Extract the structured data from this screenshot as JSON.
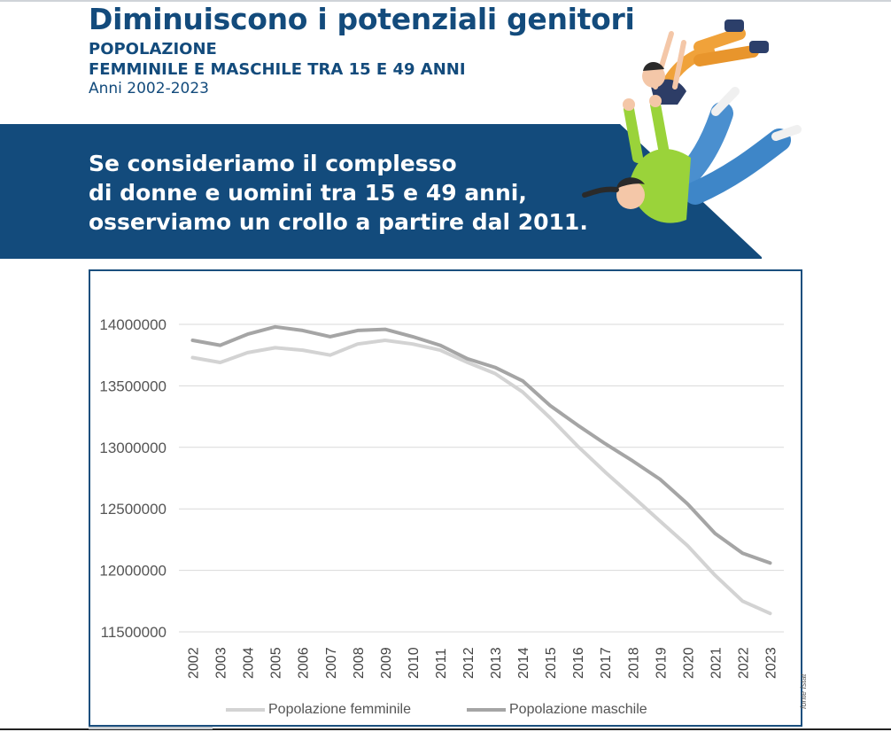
{
  "header": {
    "title": "Diminuiscono i potenziali genitori",
    "subtitle_line1": "POPOLAZIONE",
    "subtitle_line2": "FEMMINILE E MASCHILE TRA 15 E 49 ANNI",
    "years": "Anni 2002-2023"
  },
  "banner": {
    "line1": "Se consideriamo il complesso",
    "line2": "di donne e uomini tra 15 e 49 anni,",
    "line3": "osserviamo un crollo a partire dal 2011."
  },
  "source_note": "fonte Istat",
  "colors": {
    "title": "#134b7c",
    "banner": "#134b7c",
    "series_femminile": "#d3d3d3",
    "series_maschile": "#a5a5a5",
    "chart_border": "#1a4f7e"
  },
  "chart_data": {
    "type": "line",
    "x": [
      "2002",
      "2003",
      "2004",
      "2005",
      "2006",
      "2007",
      "2008",
      "2009",
      "2010",
      "2011",
      "2012",
      "2013",
      "2014",
      "2015",
      "2016",
      "2017",
      "2018",
      "2019",
      "2020",
      "2021",
      "2022",
      "2023"
    ],
    "series": [
      {
        "name": "Popolazione femminile",
        "values": [
          13730000,
          13690000,
          13770000,
          13810000,
          13790000,
          13750000,
          13840000,
          13870000,
          13840000,
          13790000,
          13690000,
          13600000,
          13450000,
          13240000,
          13010000,
          12800000,
          12600000,
          12400000,
          12200000,
          11960000,
          11750000,
          11650000
        ]
      },
      {
        "name": "Popolazione maschile",
        "values": [
          13870000,
          13830000,
          13920000,
          13980000,
          13950000,
          13900000,
          13950000,
          13960000,
          13900000,
          13830000,
          13720000,
          13650000,
          13540000,
          13340000,
          13180000,
          13030000,
          12890000,
          12740000,
          12540000,
          12300000,
          12140000,
          12060000
        ]
      }
    ],
    "ylim": [
      11500000,
      14000000
    ],
    "yticks": [
      "11500000",
      "12000000",
      "12500000",
      "13000000",
      "13500000",
      "14000000"
    ],
    "grid": true,
    "legend_position": "bottom"
  }
}
